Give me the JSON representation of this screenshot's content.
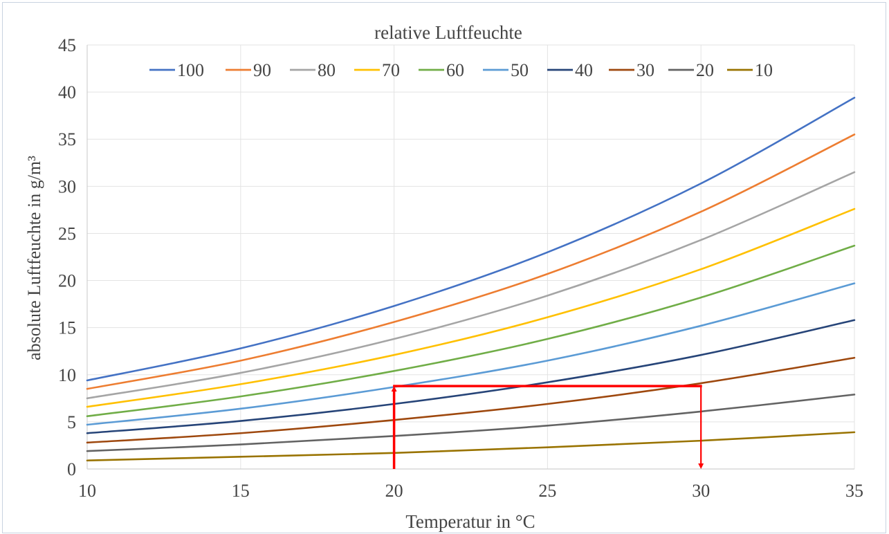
{
  "chart_data": {
    "type": "line",
    "title": "relative Luftfeuchte",
    "xlabel": "Temperatur in °C",
    "ylabel": "absolute Luftfeuchte in g/m³",
    "xlim": [
      10,
      35
    ],
    "ylim": [
      0,
      45
    ],
    "x_ticks": [
      "10",
      "15",
      "20",
      "25",
      "30",
      "35"
    ],
    "y_ticks": [
      "0",
      "5",
      "10",
      "15",
      "20",
      "25",
      "30",
      "35",
      "40",
      "45"
    ],
    "grid": true,
    "legend_position": "top",
    "x": [
      10,
      15,
      20,
      25,
      30,
      35
    ],
    "series": [
      {
        "name": "100",
        "color": "#4472c4",
        "values": [
          9.4,
          12.8,
          17.3,
          23.0,
          30.3,
          39.4
        ]
      },
      {
        "name": "90",
        "color": "#ed7d31",
        "values": [
          8.5,
          11.5,
          15.6,
          20.7,
          27.3,
          35.5
        ]
      },
      {
        "name": "80",
        "color": "#a5a5a5",
        "values": [
          7.5,
          10.2,
          13.8,
          18.4,
          24.3,
          31.5
        ]
      },
      {
        "name": "70",
        "color": "#ffc000",
        "values": [
          6.6,
          9.0,
          12.1,
          16.1,
          21.2,
          27.6
        ]
      },
      {
        "name": "60",
        "color": "#70ad47",
        "values": [
          5.6,
          7.7,
          10.4,
          13.8,
          18.2,
          23.7
        ]
      },
      {
        "name": "50",
        "color": "#5b9bd5",
        "values": [
          4.7,
          6.4,
          8.7,
          11.5,
          15.2,
          19.7
        ]
      },
      {
        "name": "40",
        "color": "#264478",
        "values": [
          3.8,
          5.1,
          6.9,
          9.2,
          12.1,
          15.8
        ]
      },
      {
        "name": "30",
        "color": "#9e480e",
        "values": [
          2.8,
          3.8,
          5.2,
          6.9,
          9.1,
          11.8
        ]
      },
      {
        "name": "20",
        "color": "#636363",
        "values": [
          1.9,
          2.6,
          3.5,
          4.6,
          6.1,
          7.9
        ]
      },
      {
        "name": "10",
        "color": "#997300",
        "values": [
          0.9,
          1.3,
          1.7,
          2.3,
          3.0,
          3.9
        ]
      }
    ],
    "annotation_path": {
      "color": "#ff0000",
      "points": [
        [
          20,
          0
        ],
        [
          20,
          8.8
        ],
        [
          30,
          8.8
        ],
        [
          30,
          0
        ]
      ]
    }
  }
}
